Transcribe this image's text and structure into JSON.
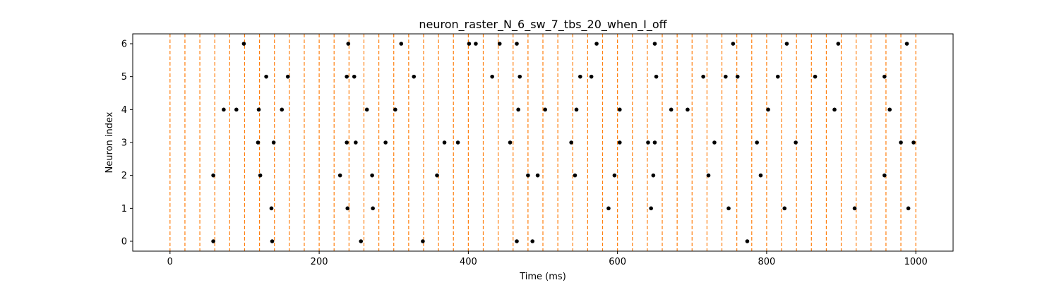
{
  "chart_data": {
    "type": "scatter",
    "title": "neuron_raster_N_6_sw_7_tbs_20_when_I_off",
    "xlabel": "Time (ms)",
    "ylabel": "Neuron index",
    "xlim": [
      -50,
      1050
    ],
    "ylim": [
      -0.3,
      6.3
    ],
    "xticks": [
      0,
      200,
      400,
      600,
      800,
      1000
    ],
    "yticks": [
      0,
      1,
      2,
      3,
      4,
      5,
      6
    ],
    "grid": false,
    "marker_color": "#000000",
    "vline_color": "#ff7f0e",
    "vline_style": "dashed",
    "vlines": [
      0,
      20,
      40,
      60,
      80,
      100,
      120,
      140,
      160,
      180,
      200,
      220,
      240,
      260,
      280,
      300,
      320,
      340,
      360,
      380,
      400,
      420,
      440,
      460,
      480,
      500,
      520,
      540,
      560,
      580,
      600,
      620,
      640,
      660,
      680,
      700,
      720,
      740,
      760,
      780,
      800,
      820,
      840,
      860,
      880,
      900,
      920,
      940,
      960,
      980,
      1000
    ],
    "spikes": [
      {
        "neuron": 0,
        "times": [
          58,
          137,
          256,
          339,
          465,
          486,
          774
        ]
      },
      {
        "neuron": 1,
        "times": [
          136,
          238,
          272,
          588,
          645,
          749,
          824,
          918,
          990
        ]
      },
      {
        "neuron": 2,
        "times": [
          58,
          121,
          228,
          271,
          358,
          480,
          493,
          543,
          596,
          648,
          722,
          792,
          958
        ]
      },
      {
        "neuron": 3,
        "times": [
          118,
          139,
          237,
          249,
          289,
          368,
          386,
          456,
          538,
          603,
          641,
          650,
          730,
          787,
          839,
          980,
          997
        ]
      },
      {
        "neuron": 4,
        "times": [
          72,
          89,
          119,
          150,
          264,
          302,
          467,
          503,
          545,
          603,
          672,
          694,
          802,
          891,
          965
        ]
      },
      {
        "neuron": 5,
        "times": [
          129,
          158,
          237,
          247,
          327,
          432,
          469,
          550,
          565,
          652,
          715,
          745,
          761,
          815,
          865,
          958
        ]
      },
      {
        "neuron": 6,
        "times": [
          99,
          239,
          310,
          401,
          410,
          442,
          465,
          572,
          650,
          755,
          827,
          896,
          988
        ]
      }
    ]
  }
}
